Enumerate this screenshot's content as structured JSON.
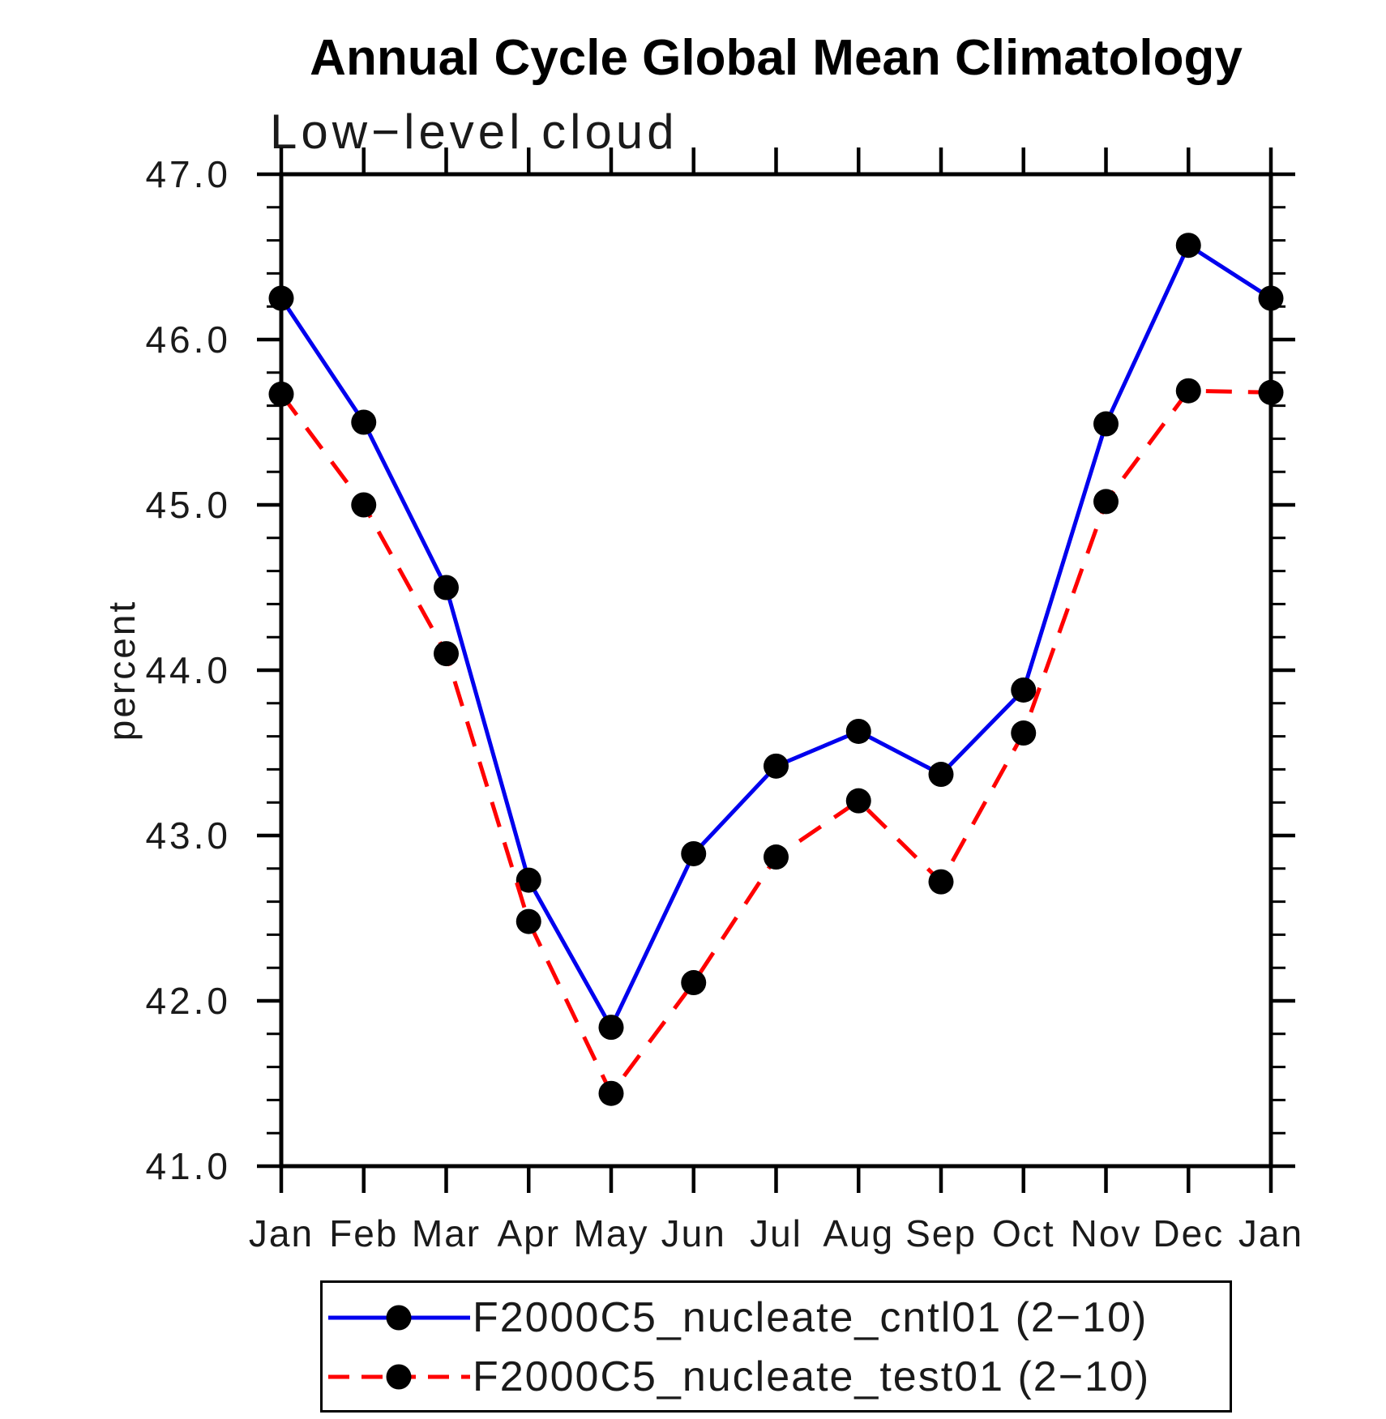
{
  "title": "Annual Cycle Global Mean Climatology",
  "subtitle": "Low−level cloud",
  "y_axis_title": "percent",
  "colors": {
    "series_cntl": "#0000ee",
    "series_test": "#ff0000",
    "marker": "#000000",
    "axis": "#000000",
    "background": "#ffffff"
  },
  "chart_data": {
    "type": "line",
    "categories": [
      "Jan",
      "Feb",
      "Mar",
      "Apr",
      "May",
      "Jun",
      "Jul",
      "Aug",
      "Sep",
      "Oct",
      "Nov",
      "Dec",
      "Jan"
    ],
    "series": [
      {
        "name": "F2000C5_nucleate_cntl01 (2−10)",
        "color": "#0000ee",
        "style": "solid",
        "marker": "filled-circle",
        "values": [
          46.25,
          45.5,
          44.5,
          42.73,
          41.84,
          42.89,
          43.42,
          43.63,
          43.37,
          43.88,
          45.49,
          46.57,
          46.25
        ]
      },
      {
        "name": "F2000C5_nucleate_test01 (2−10)",
        "color": "#ff0000",
        "style": "dashed",
        "marker": "filled-circle",
        "values": [
          45.67,
          45.0,
          44.1,
          42.48,
          41.44,
          42.11,
          42.87,
          43.21,
          42.72,
          43.62,
          45.02,
          45.69,
          45.68
        ]
      }
    ],
    "title": "Annual Cycle Global Mean Climatology",
    "subtitle": "Low−level cloud",
    "xlabel": "",
    "ylabel": "percent",
    "ylim": [
      41.0,
      47.0
    ],
    "ytick_major_step": 1.0,
    "ytick_minor_step": 0.2,
    "ytick_labels": [
      "41.0",
      "42.0",
      "43.0",
      "44.0",
      "45.0",
      "46.0",
      "47.0"
    ],
    "grid": false,
    "legend_position": "bottom"
  }
}
